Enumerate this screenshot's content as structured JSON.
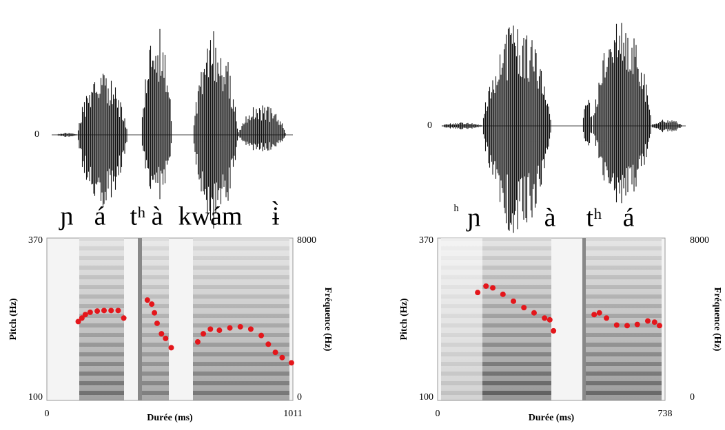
{
  "chart_data": [
    {
      "type": "scatter",
      "segments": [
        "ɲ",
        "á",
        "tʰ",
        "à",
        "kwám",
        "ɨ̀"
      ],
      "waveform_yticks": [
        0
      ],
      "xlim": [
        0,
        1011
      ],
      "xticks": [
        0,
        1011
      ],
      "ylim": [
        100,
        370
      ],
      "yticks": [
        100,
        370
      ],
      "y2lim": [
        0,
        8000
      ],
      "y2ticks": [
        0,
        8000
      ],
      "xlabel": "Durée (ms)",
      "ylabel": "Pitch (Hz)",
      "y2label": "Fréquence (Hz)",
      "series": [
        {
          "color": "#e4161b",
          "x": [
            129,
            144,
            158,
            178,
            207,
            235,
            264,
            293,
            316,
            413,
            431,
            442,
            453,
            471,
            488,
            511,
            620,
            643,
            672,
            709,
            752,
            795,
            838,
            881,
            910,
            939,
            967,
            1005
          ],
          "values": [
            231,
            237,
            243,
            247,
            249,
            250,
            250,
            250,
            237,
            268,
            261,
            246,
            228,
            210,
            202,
            186,
            196,
            210,
            218,
            216,
            220,
            222,
            218,
            207,
            192,
            178,
            169,
            160
          ]
        }
      ]
    },
    {
      "type": "scatter",
      "segments": [
        "ʰ",
        "ɲ",
        "à",
        "tʰ",
        "á"
      ],
      "waveform_yticks": [
        0
      ],
      "xlim": [
        0,
        738
      ],
      "xticks": [
        0,
        738
      ],
      "ylim": [
        100,
        370
      ],
      "yticks": [
        100,
        370
      ],
      "y2lim": [
        0,
        8000
      ],
      "y2ticks": [
        0,
        8000
      ],
      "xlabel": "Durée (ms)",
      "ylabel": "Pitch (Hz)",
      "y2label": "Fréquence (Hz)",
      "series": [
        {
          "color": "#e4161b",
          "x": [
            130,
            157,
            179,
            212,
            246,
            280,
            313,
            347,
            364,
            376,
            508,
            525,
            548,
            581,
            615,
            648,
            682,
            704,
            720
          ],
          "values": [
            281,
            292,
            289,
            278,
            266,
            255,
            246,
            237,
            234,
            215,
            243,
            246,
            237,
            225,
            224,
            226,
            232,
            230,
            224
          ]
        }
      ]
    }
  ]
}
